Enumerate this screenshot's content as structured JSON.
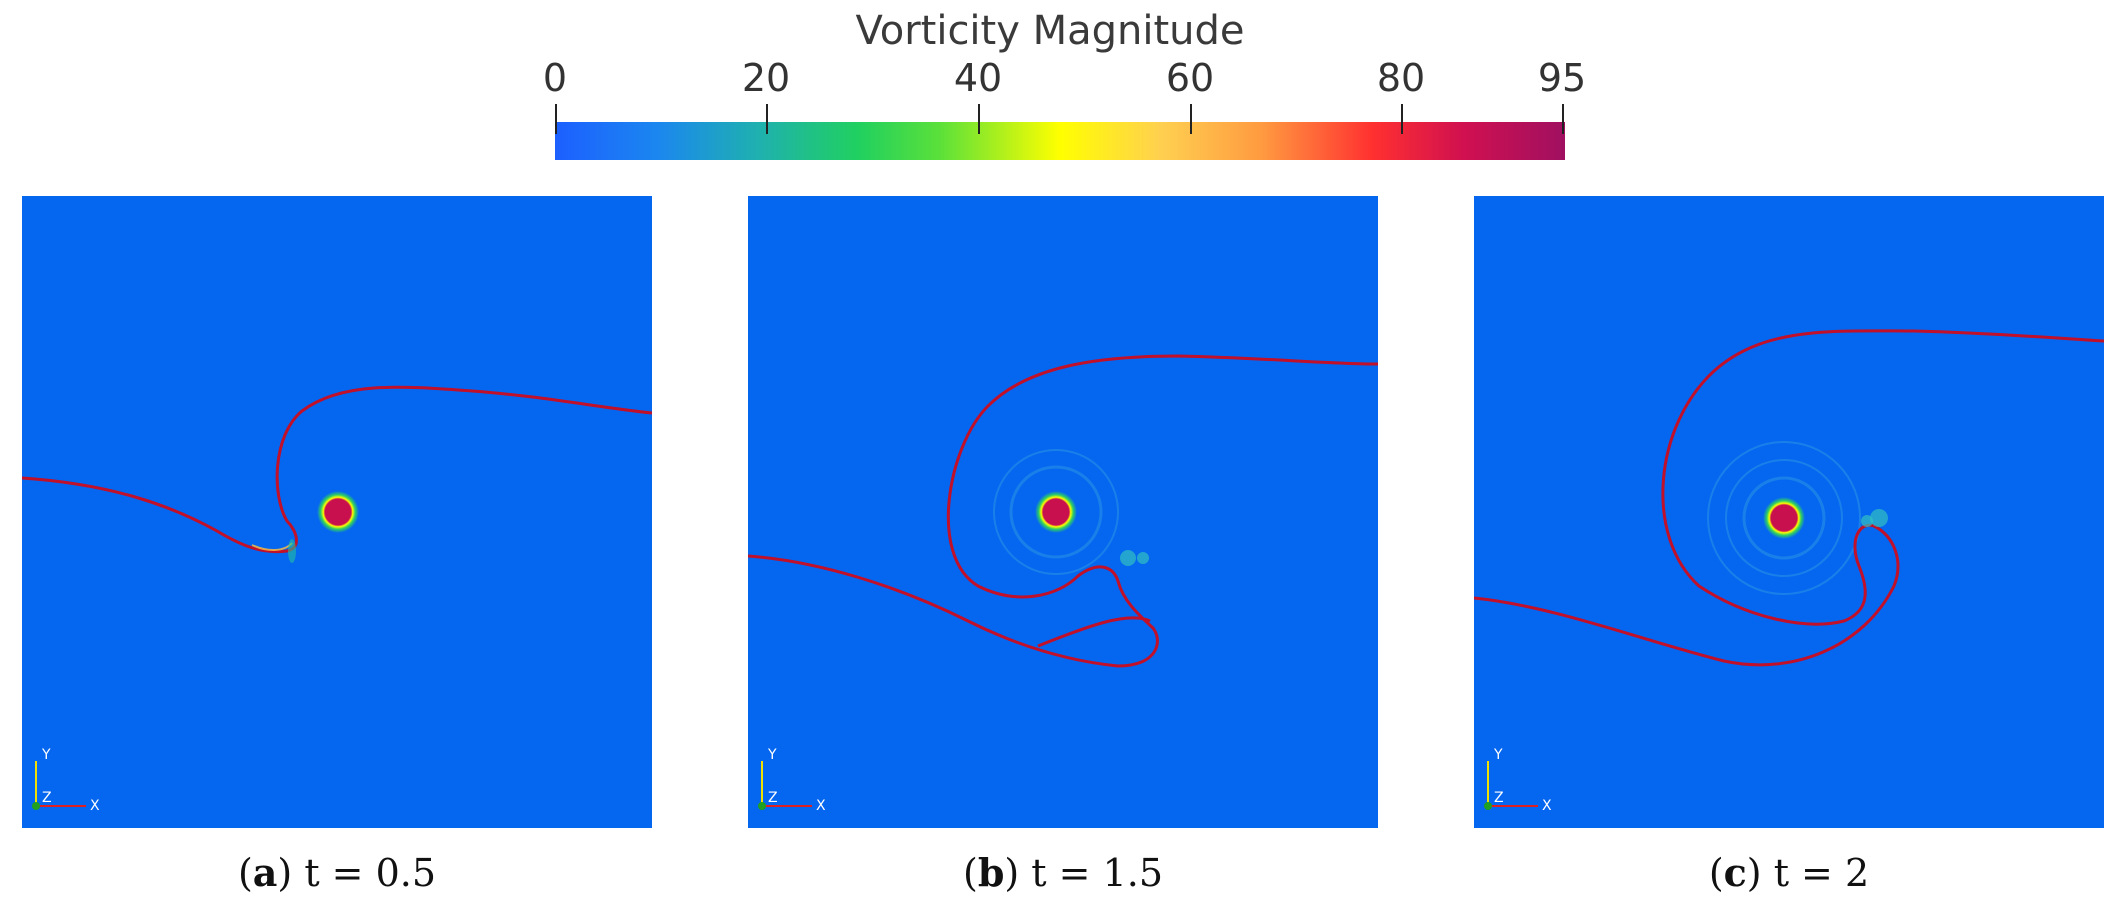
{
  "colorbar": {
    "title": "Vorticity Magnitude",
    "ticks": [
      "0",
      "20",
      "40",
      "60",
      "80",
      "95"
    ]
  },
  "panels": [
    {
      "label": "a",
      "caption": "t = 0.5"
    },
    {
      "label": "b",
      "caption": "t = 1.5"
    },
    {
      "label": "c",
      "caption": "t = 2"
    }
  ],
  "axes_triad": {
    "y": "Y",
    "z": "Z",
    "x": "X"
  },
  "colors": {
    "field": "#0566f0",
    "interface": "#c0102a",
    "core": "#c8104e"
  }
}
